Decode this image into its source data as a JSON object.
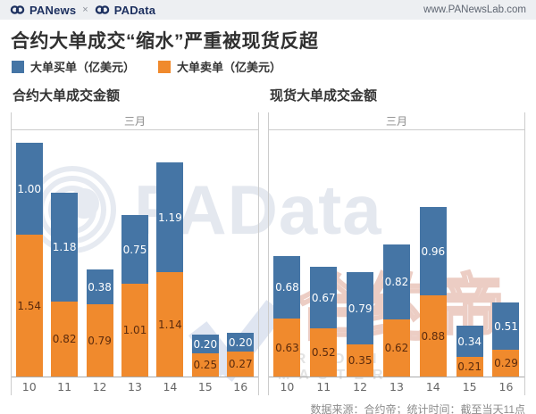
{
  "topbar": {
    "brand_left": "PANews",
    "brand_sep": "×",
    "brand_right": "PAData",
    "url": "www.PANewsLab.com"
  },
  "title": "合约大单成交“缩水”严重被现货反超",
  "legend": [
    {
      "label": "大单买单（亿美元）",
      "color": "#4575a5"
    },
    {
      "label": "大单卖单（亿美元）",
      "color": "#f08a2d"
    }
  ],
  "watermarks": {
    "center": "PAData",
    "right_text": "合约帝",
    "right_sub": "TRADING MASTER"
  },
  "footer": {
    "source": "数据来源：合约帝；统计时间：截至当天11点"
  },
  "colors": {
    "buy_blue": "#4575a5",
    "sell_orange": "#f08a2d"
  },
  "chart_data": [
    {
      "type": "bar",
      "stacked": true,
      "title": "合约大单成交金额",
      "x_header": "三月",
      "categories": [
        "10",
        "11",
        "12",
        "13",
        "14",
        "15",
        "16"
      ],
      "series": [
        {
          "name": "大单买单（亿美元）",
          "color": "#4575a5",
          "position": "top",
          "values": [
            1.0,
            1.18,
            0.38,
            0.75,
            1.19,
            0.2,
            0.2
          ]
        },
        {
          "name": "大单卖单（亿美元）",
          "color": "#f08a2d",
          "position": "bottom",
          "values": [
            1.54,
            0.82,
            0.79,
            1.01,
            1.14,
            0.25,
            0.27
          ]
        }
      ],
      "unit": "亿美元",
      "ylim": [
        0,
        2.7
      ],
      "grid": false,
      "legend_position": "top"
    },
    {
      "type": "bar",
      "stacked": true,
      "title": "现货大单成交金额",
      "x_header": "三月",
      "categories": [
        "10",
        "11",
        "12",
        "13",
        "14",
        "15",
        "16"
      ],
      "series": [
        {
          "name": "大单买单（亿美元）",
          "color": "#4575a5",
          "position": "top",
          "values": [
            0.68,
            0.67,
            0.79,
            0.82,
            0.96,
            0.34,
            0.51
          ]
        },
        {
          "name": "大单卖单（亿美元）",
          "color": "#f08a2d",
          "position": "bottom",
          "values": [
            0.63,
            0.52,
            0.35,
            0.62,
            0.88,
            0.21,
            0.29
          ]
        }
      ],
      "unit": "亿美元",
      "ylim": [
        0,
        2.7
      ],
      "grid": false,
      "legend_position": "top"
    }
  ]
}
